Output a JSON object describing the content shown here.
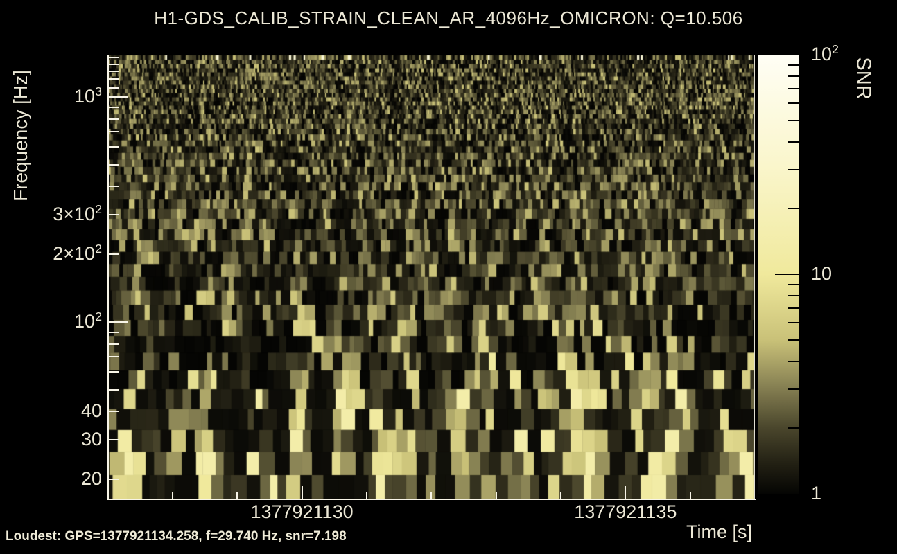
{
  "figure": {
    "title": "H1-GDS_CALIB_STRAIN_CLEAN_AR_4096Hz_OMICRON: Q=10.506",
    "footer_loudest": "Loudest: GPS=1377921134.258, f=29.740 Hz, snr=7.198"
  },
  "colors": {
    "background": "#000000",
    "axis_line": "#f8f5e8",
    "text": "#ece8d6",
    "colorbar_tick": "#000000",
    "colormap_stops": [
      {
        "t": 0.0,
        "hex": "#050503"
      },
      {
        "t": 0.07,
        "hex": "#232114"
      },
      {
        "t": 0.15,
        "hex": "#4a462c"
      },
      {
        "t": 0.25,
        "hex": "#8a8455"
      },
      {
        "t": 0.35,
        "hex": "#c9c178"
      },
      {
        "t": 0.5,
        "hex": "#f0e99c"
      },
      {
        "t": 0.75,
        "hex": "#faf6cc"
      },
      {
        "t": 1.0,
        "hex": "#fffef5"
      }
    ]
  },
  "chart_data": {
    "type": "heatmap",
    "subtype": "omicron_q_transform_spectrogram",
    "title": "H1-GDS_CALIB_STRAIN_CLEAN_AR_4096Hz_OMICRON: Q=10.506",
    "q_value": 10.506,
    "xlabel": "Time [s]",
    "ylabel": "Frequency [Hz]",
    "colorbar_label": "SNR",
    "x_axis": {
      "scale": "linear",
      "range": [
        1377921127,
        1377921137
      ],
      "major_ticks": [
        {
          "value": 1377921130,
          "label": "1377921130"
        },
        {
          "value": 1377921135,
          "label": "1377921135"
        }
      ],
      "minor_ticks": [
        1377921128,
        1377921129,
        1377921131,
        1377921132,
        1377921133,
        1377921134,
        1377921136
      ]
    },
    "y_axis": {
      "scale": "log",
      "range": [
        16.2,
        1530
      ],
      "labeled_ticks": [
        {
          "value": 1000,
          "pre": "10",
          "exp": "3"
        },
        {
          "value": 300,
          "pre": "3×10",
          "exp": "2"
        },
        {
          "value": 200,
          "pre": "2×10",
          "exp": "2"
        },
        {
          "value": 100,
          "pre": "10",
          "exp": "2"
        },
        {
          "value": 40,
          "pre": "40",
          "exp": ""
        },
        {
          "value": 30,
          "pre": "30",
          "exp": ""
        },
        {
          "value": 20,
          "pre": "20",
          "exp": ""
        }
      ],
      "major_ticks": [
        100,
        1000
      ],
      "minor_ticks": [
        20,
        30,
        40,
        50,
        60,
        70,
        80,
        90,
        200,
        300,
        400,
        500,
        600,
        700,
        800,
        900,
        1100,
        1200,
        1300,
        1400,
        1500
      ]
    },
    "colorbar": {
      "scale": "log",
      "range": [
        1,
        100
      ],
      "labeled_ticks": [
        {
          "value": 100,
          "pre": "10",
          "exp": "2"
        },
        {
          "value": 10,
          "pre": "10",
          "exp": ""
        },
        {
          "value": 1,
          "pre": "1",
          "exp": ""
        }
      ],
      "major_ticks": [
        10
      ],
      "minor_ticks": [
        2,
        3,
        4,
        5,
        6,
        7,
        8,
        9,
        20,
        30,
        40,
        50,
        60,
        70,
        80,
        90
      ]
    },
    "loudest": {
      "gps": 1377921134.258,
      "frequency_hz": 29.74,
      "snr": 7.198
    },
    "features": [
      {
        "t": 1377921131.33,
        "f": 21.8,
        "snr": 6.8,
        "dur": 0.24,
        "bw_dex": 0.086
      },
      {
        "t": 1377921131.6,
        "f": 25.1,
        "snr": 5.2,
        "dur": 0.16,
        "bw_dex": 0.092
      },
      {
        "t": 1377921132.62,
        "f": 22.6,
        "snr": 5.6,
        "dur": 0.21,
        "bw_dex": 0.068
      },
      {
        "t": 1377921132.94,
        "f": 20.3,
        "snr": 4.3,
        "dur": 0.15,
        "bw_dex": 0.055
      },
      {
        "t": 1377921134.26,
        "f": 29.7,
        "snr": 7.2,
        "dur": 0.17,
        "bw_dex": 0.17
      },
      {
        "t": 1377921134.49,
        "f": 20.3,
        "snr": 5.8,
        "dur": 0.19,
        "bw_dex": 0.077
      },
      {
        "t": 1377921135.7,
        "f": 25.1,
        "snr": 6.8,
        "dur": 0.19,
        "bw_dex": 0.14
      },
      {
        "t": 1377921135.89,
        "f": 38.5,
        "snr": 4.7,
        "dur": 0.15,
        "bw_dex": 0.092
      },
      {
        "t": 1377921127.32,
        "f": 25.1,
        "snr": 3.7,
        "dur": 0.15,
        "bw_dex": 0.092
      },
      {
        "t": 1377921128.66,
        "f": 21.8,
        "snr": 3.3,
        "dur": 0.15,
        "bw_dex": 0.062
      },
      {
        "t": 1377921130.58,
        "f": 39.8,
        "snr": 3.3,
        "dur": 0.13,
        "bw_dex": 0.068
      },
      {
        "t": 1377921136.8,
        "f": 23.4,
        "snr": 4.3,
        "dur": 0.15,
        "bw_dex": 0.086
      },
      {
        "t": 1377921129.94,
        "f": 29.0,
        "snr": 3.0,
        "dur": 0.13,
        "bw_dex": 0.062
      }
    ],
    "noise_character": "dense dark-olive vertical speckle over black; coarser, brighter tiles below 50 Hz"
  }
}
